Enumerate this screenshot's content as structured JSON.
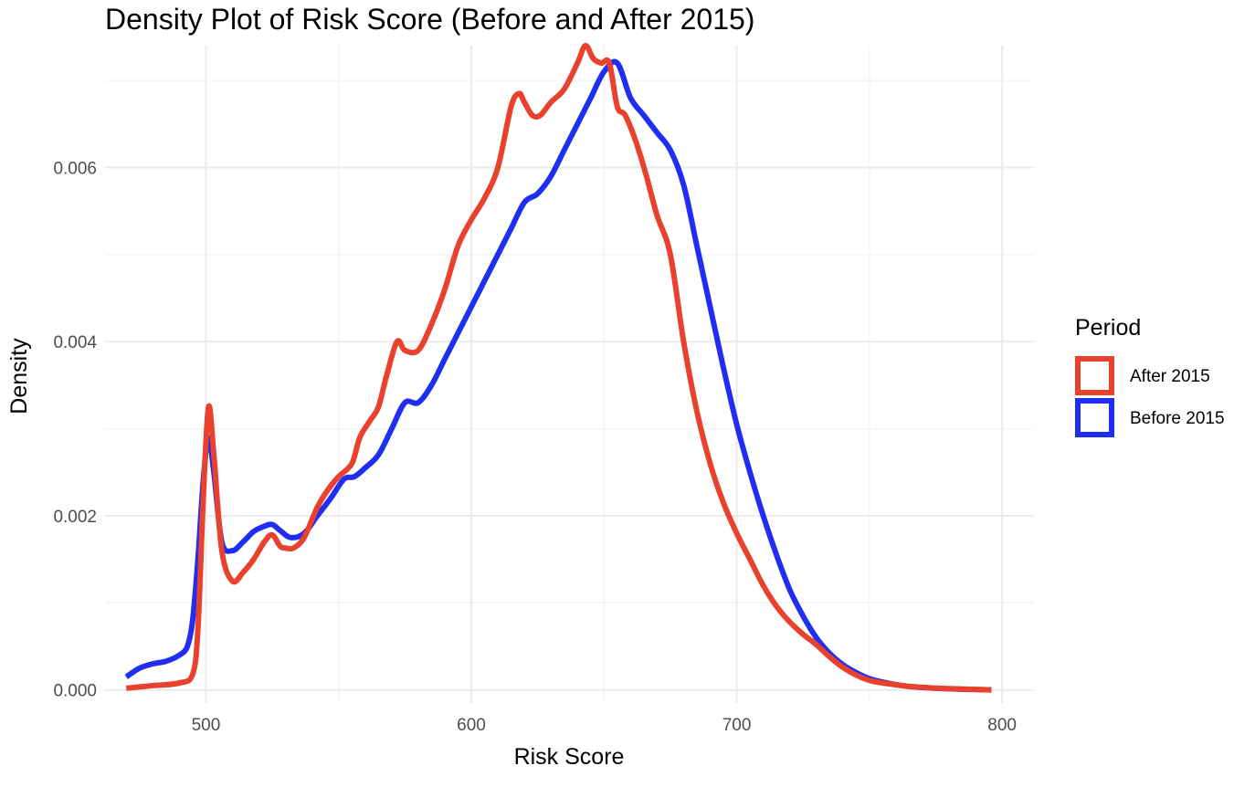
{
  "chart_data": {
    "type": "line",
    "title": "Density Plot of Risk Score (Before and After 2015)",
    "xlabel": "Risk Score",
    "ylabel": "Density",
    "xlim": [
      462,
      812
    ],
    "ylim": [
      -0.00015,
      0.0074
    ],
    "x_ticks": [
      500,
      600,
      700,
      800
    ],
    "y_ticks": [
      0.0,
      0.002,
      0.004,
      0.006
    ],
    "x_tick_labels": [
      "500",
      "600",
      "700",
      "800"
    ],
    "y_tick_labels": [
      "0.000",
      "0.002",
      "0.004",
      "0.006"
    ],
    "grid": true,
    "legend": {
      "title": "Period",
      "position": "right"
    },
    "series": [
      {
        "name": "After 2015",
        "color": "#E8412E",
        "x": [
          470,
          480,
          490,
          495,
          497,
          499,
          501,
          503,
          506,
          510,
          514,
          518,
          522,
          525,
          528,
          530,
          533,
          537,
          542,
          546,
          550,
          555,
          558,
          562,
          565,
          568,
          572,
          575,
          580,
          585,
          590,
          595,
          600,
          605,
          610,
          615,
          618,
          620,
          623,
          626,
          630,
          635,
          640,
          643,
          646,
          649,
          652,
          655,
          658,
          662,
          666,
          670,
          675,
          680,
          685,
          690,
          695,
          700,
          705,
          710,
          715,
          720,
          725,
          730,
          735,
          740,
          745,
          750,
          755,
          760,
          765,
          770,
          775,
          780,
          785,
          790,
          793,
          796
        ],
        "y": [
          2e-05,
          5e-05,
          8e-05,
          0.00018,
          0.0007,
          0.0022,
          0.00325,
          0.0027,
          0.0016,
          0.00125,
          0.00135,
          0.0015,
          0.0017,
          0.00178,
          0.00165,
          0.00163,
          0.00163,
          0.00175,
          0.0021,
          0.0023,
          0.00245,
          0.0026,
          0.0029,
          0.0031,
          0.00325,
          0.0036,
          0.004,
          0.0039,
          0.0039,
          0.0042,
          0.0046,
          0.0051,
          0.0054,
          0.00565,
          0.006,
          0.0067,
          0.00685,
          0.00675,
          0.0066,
          0.0066,
          0.00675,
          0.0069,
          0.0072,
          0.0074,
          0.00725,
          0.0072,
          0.0072,
          0.0067,
          0.0066,
          0.0063,
          0.0059,
          0.00545,
          0.005,
          0.004,
          0.0032,
          0.0026,
          0.00215,
          0.0018,
          0.0015,
          0.0012,
          0.00096,
          0.00078,
          0.00064,
          0.00052,
          0.00038,
          0.00026,
          0.00017,
          0.00011,
          8e-05,
          6e-05,
          4e-05,
          3e-05,
          2e-05,
          1.5e-05,
          1e-05,
          6e-06,
          3e-06,
          1e-06
        ]
      },
      {
        "name": "Before 2015",
        "color": "#1F2EF2",
        "x": [
          470,
          475,
          480,
          485,
          490,
          493,
          495,
          497,
          499,
          501,
          503,
          506,
          510,
          514,
          518,
          522,
          525,
          528,
          532,
          537,
          542,
          547,
          552,
          556,
          560,
          565,
          570,
          575,
          580,
          585,
          590,
          595,
          600,
          605,
          610,
          615,
          620,
          625,
          630,
          635,
          640,
          645,
          650,
          655,
          660,
          665,
          670,
          675,
          680,
          685,
          690,
          695,
          700,
          705,
          710,
          715,
          720,
          725,
          730,
          735,
          740,
          745,
          750,
          755,
          760,
          765,
          770,
          775,
          780,
          785,
          790,
          793,
          796
        ],
        "y": [
          0.00015,
          0.00025,
          0.0003,
          0.00033,
          0.0004,
          0.0005,
          0.0008,
          0.0015,
          0.0024,
          0.0029,
          0.0025,
          0.0017,
          0.0016,
          0.0017,
          0.00182,
          0.00188,
          0.0019,
          0.00183,
          0.00175,
          0.0018,
          0.002,
          0.0022,
          0.00242,
          0.00245,
          0.00255,
          0.0027,
          0.003,
          0.0033,
          0.0033,
          0.0035,
          0.0038,
          0.0041,
          0.0044,
          0.0047,
          0.005,
          0.0053,
          0.0056,
          0.0057,
          0.0059,
          0.0062,
          0.0065,
          0.0068,
          0.0071,
          0.0072,
          0.0068,
          0.0066,
          0.0064,
          0.0062,
          0.0058,
          0.0051,
          0.0044,
          0.0037,
          0.00305,
          0.0025,
          0.002,
          0.00155,
          0.00115,
          0.00085,
          0.0006,
          0.00042,
          0.00029,
          0.0002,
          0.00013,
          9e-05,
          6e-05,
          4e-05,
          2.8e-05,
          2e-05,
          1.3e-05,
          8e-06,
          5e-06,
          3e-06,
          1e-06
        ]
      }
    ]
  }
}
